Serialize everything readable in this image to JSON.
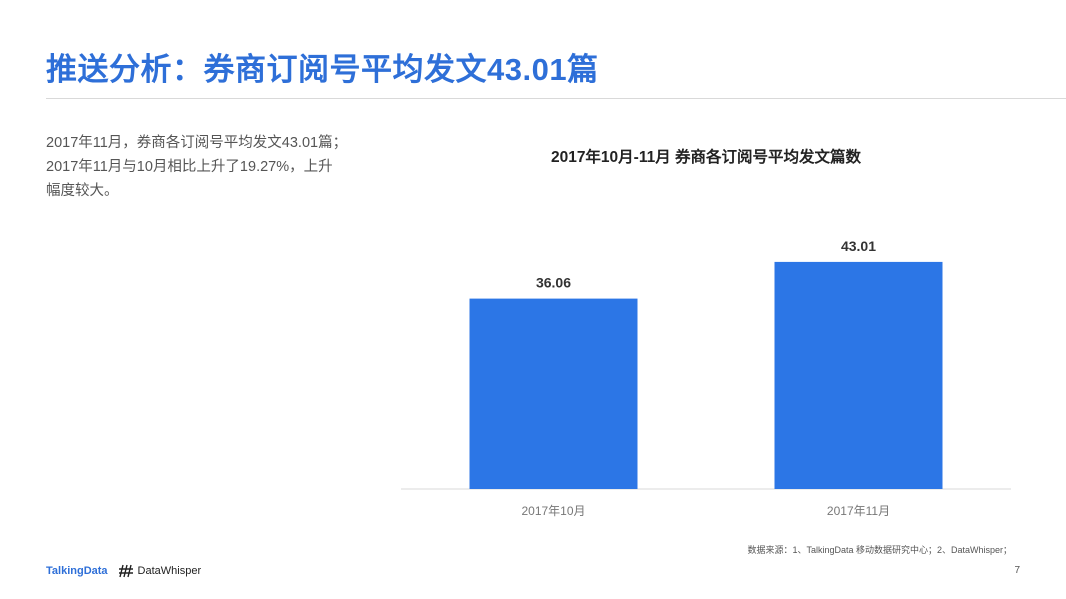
{
  "page": {
    "title": "推送分析：券商订阅号平均发文43.01篇",
    "description": [
      "2017年11月，券商各订阅号平均发文43.01篇；",
      "2017年11月与10月相比上升了19.27%，上升",
      "幅度较大。"
    ],
    "source": "数据来源：1、TalkingData 移动数据研究中心；2、DataWhisper；",
    "page_number": "7"
  },
  "logos": {
    "talkingdata": "TalkingData",
    "datawhisper": "DataWhisper"
  },
  "colors": {
    "title": "#2E6FD8",
    "bar": "#2C76E6",
    "axis": "#d9d9d9"
  },
  "chart_data": {
    "type": "bar",
    "title": "2017年10月-11月 券商各订阅号平均发文篇数",
    "categories": [
      "2017年10月",
      "2017年11月"
    ],
    "values": [
      36.06,
      43.01
    ],
    "data_labels": [
      "36.06",
      "43.01"
    ],
    "ylim": [
      0,
      50
    ],
    "grid": false,
    "legend": "none",
    "xlabel": "",
    "ylabel": ""
  }
}
